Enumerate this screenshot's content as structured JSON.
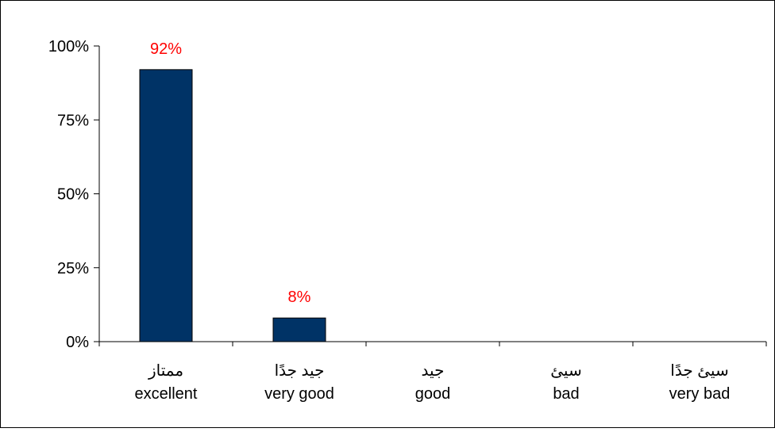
{
  "chart_data": {
    "type": "bar",
    "categories": [
      {
        "ar": "ممتاز",
        "en": "excellent"
      },
      {
        "ar": "جيد جدًا",
        "en": "very good"
      },
      {
        "ar": "جيد",
        "en": "good"
      },
      {
        "ar": "سيئ",
        "en": "bad"
      },
      {
        "ar": "سيئ جدًا",
        "en": "very bad"
      }
    ],
    "values": [
      92,
      8,
      0,
      0,
      0
    ],
    "data_labels": [
      "92%",
      "8%",
      "",
      "",
      ""
    ],
    "ylim": [
      0,
      100
    ],
    "yticks": [
      {
        "value": 0,
        "label": "0%"
      },
      {
        "value": 25,
        "label": "25%"
      },
      {
        "value": 50,
        "label": "50%"
      },
      {
        "value": 75,
        "label": "75%"
      },
      {
        "value": 100,
        "label": "100%"
      }
    ],
    "grid": false,
    "colors": {
      "bar_fill": "#003366",
      "bar_stroke": "#000000",
      "data_label": "#ff0000",
      "axis": "#000000",
      "tick_label": "#000000"
    }
  }
}
